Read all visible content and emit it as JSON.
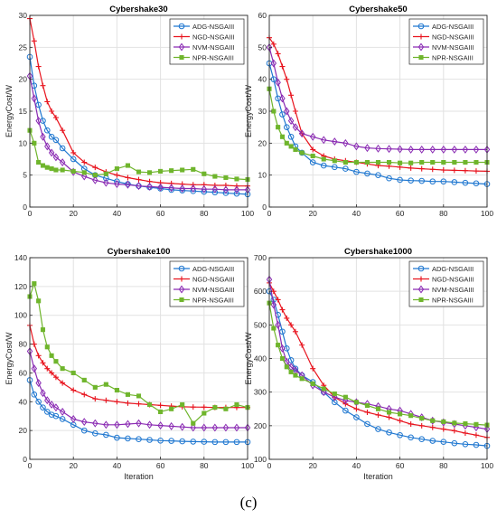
{
  "caption": "(c)",
  "colors": {
    "ADG-NSGAIII": "#1f77d0",
    "NGD-NSGAIII": "#e8141e",
    "NVM-NSGAIII": "#8a2bb3",
    "NPR-NSGAIII": "#6fb52c"
  },
  "chart_data": [
    {
      "type": "line",
      "title": "Cybershake30",
      "xlabel": "",
      "ylabel": "EnergyCost/W",
      "xlim": [
        0,
        100
      ],
      "ylim": [
        0,
        30
      ],
      "xticks": [
        0,
        20,
        40,
        60,
        80,
        100
      ],
      "yticks": [
        0,
        5,
        10,
        15,
        20,
        25,
        30
      ],
      "grid": true,
      "legend_position": "top-right",
      "series": [
        {
          "name": "ADG-NSGAIII",
          "marker": "circle",
          "x": [
            0,
            2,
            4,
            6,
            8,
            10,
            12,
            15,
            20,
            25,
            30,
            35,
            40,
            45,
            50,
            55,
            60,
            65,
            70,
            75,
            80,
            85,
            90,
            95,
            100
          ],
          "values": [
            23.5,
            19,
            16,
            13.5,
            12,
            11,
            10.5,
            9.2,
            7.5,
            6,
            5,
            4.5,
            4,
            3.6,
            3.3,
            3.1,
            2.9,
            2.7,
            2.6,
            2.5,
            2.4,
            2.3,
            2.2,
            2.1,
            2.0
          ]
        },
        {
          "name": "NGD-NSGAIII",
          "marker": "plus",
          "x": [
            0,
            2,
            4,
            6,
            8,
            10,
            12,
            15,
            20,
            25,
            30,
            35,
            40,
            45,
            50,
            55,
            60,
            65,
            70,
            75,
            80,
            85,
            90,
            95,
            100
          ],
          "values": [
            29.5,
            26,
            22,
            19,
            16.5,
            15,
            14,
            12,
            8.5,
            7,
            6.2,
            5.5,
            5,
            4.6,
            4.3,
            4,
            3.8,
            3.7,
            3.6,
            3.5,
            3.5,
            3.4,
            3.4,
            3.3,
            3.3
          ]
        },
        {
          "name": "NVM-NSGAIII",
          "marker": "diamond",
          "x": [
            0,
            2,
            4,
            6,
            8,
            10,
            12,
            15,
            20,
            25,
            30,
            35,
            40,
            45,
            50,
            55,
            60,
            65,
            70,
            75,
            80,
            85,
            90,
            95,
            100
          ],
          "values": [
            20.5,
            17,
            13.5,
            11,
            9.5,
            8.5,
            7.8,
            7,
            5.5,
            4.8,
            4.2,
            3.8,
            3.6,
            3.5,
            3.3,
            3.2,
            3.1,
            3.0,
            2.9,
            2.9,
            2.8,
            2.8,
            2.7,
            2.7,
            2.7
          ]
        },
        {
          "name": "NPR-NSGAIII",
          "marker": "square",
          "x": [
            0,
            2,
            4,
            6,
            8,
            10,
            12,
            15,
            20,
            25,
            30,
            35,
            40,
            45,
            50,
            55,
            60,
            65,
            70,
            75,
            80,
            85,
            90,
            95,
            100
          ],
          "values": [
            12,
            10,
            7,
            6.5,
            6.2,
            6,
            5.8,
            5.8,
            5.6,
            5.4,
            5,
            5.2,
            6,
            6.5,
            5.5,
            5.4,
            5.6,
            5.7,
            5.8,
            5.9,
            5.2,
            4.8,
            4.6,
            4.4,
            4.3
          ]
        }
      ]
    },
    {
      "type": "line",
      "title": "Cybershake50",
      "xlabel": "",
      "ylabel": "EnergyCost/W",
      "xlim": [
        0,
        100
      ],
      "ylim": [
        0,
        60
      ],
      "xticks": [
        0,
        20,
        40,
        60,
        80,
        100
      ],
      "yticks": [
        0,
        10,
        20,
        30,
        40,
        50,
        60
      ],
      "grid": true,
      "legend_position": "top-right",
      "series": [
        {
          "name": "ADG-NSGAIII",
          "marker": "circle",
          "x": [
            0,
            2,
            4,
            6,
            8,
            10,
            12,
            15,
            20,
            25,
            30,
            35,
            40,
            45,
            50,
            55,
            60,
            65,
            70,
            75,
            80,
            85,
            90,
            95,
            100
          ],
          "values": [
            45,
            40,
            34,
            29,
            25,
            22,
            19,
            17,
            14,
            13,
            12.5,
            12,
            11,
            10.5,
            10,
            9,
            8.5,
            8.3,
            8.2,
            8,
            8,
            7.8,
            7.6,
            7.4,
            7.2
          ]
        },
        {
          "name": "NGD-NSGAIII",
          "marker": "plus",
          "x": [
            0,
            2,
            4,
            6,
            8,
            10,
            12,
            15,
            20,
            25,
            30,
            35,
            40,
            45,
            50,
            55,
            60,
            65,
            70,
            75,
            80,
            85,
            90,
            95,
            100
          ],
          "values": [
            53,
            51,
            48,
            44,
            40,
            35,
            30,
            23,
            18,
            16,
            15,
            14.5,
            14,
            13.5,
            13,
            12.8,
            12.5,
            12.2,
            12,
            11.8,
            11.6,
            11.5,
            11.4,
            11.3,
            11.2
          ]
        },
        {
          "name": "NVM-NSGAIII",
          "marker": "diamond",
          "x": [
            0,
            2,
            4,
            6,
            8,
            10,
            12,
            15,
            20,
            25,
            30,
            35,
            40,
            45,
            50,
            55,
            60,
            65,
            70,
            75,
            80,
            85,
            90,
            95,
            100
          ],
          "values": [
            50,
            45,
            39,
            34,
            30,
            27,
            25,
            23,
            22,
            21,
            20.5,
            20,
            19,
            18.5,
            18.3,
            18.2,
            18.1,
            18,
            18,
            18,
            18,
            18,
            18,
            18,
            18
          ]
        },
        {
          "name": "NPR-NSGAIII",
          "marker": "square",
          "x": [
            0,
            2,
            4,
            6,
            8,
            10,
            12,
            15,
            20,
            25,
            30,
            35,
            40,
            45,
            50,
            55,
            60,
            65,
            70,
            75,
            80,
            85,
            90,
            95,
            100
          ],
          "values": [
            37,
            30,
            25,
            22,
            20,
            19,
            18,
            17,
            16,
            15,
            14.5,
            14,
            14,
            14,
            14,
            14,
            13.8,
            13.8,
            14,
            14,
            14,
            14,
            14,
            14,
            14
          ]
        }
      ]
    },
    {
      "type": "line",
      "title": "Cybershake100",
      "xlabel": "Iteration",
      "ylabel": "EnergyCost/W",
      "xlim": [
        0,
        100
      ],
      "ylim": [
        0,
        140
      ],
      "xticks": [
        0,
        20,
        40,
        60,
        80,
        100
      ],
      "yticks": [
        0,
        20,
        40,
        60,
        80,
        100,
        120,
        140
      ],
      "grid": true,
      "legend_position": "top-right",
      "series": [
        {
          "name": "ADG-NSGAIII",
          "marker": "circle",
          "x": [
            0,
            2,
            4,
            6,
            8,
            10,
            12,
            15,
            20,
            25,
            30,
            35,
            40,
            45,
            50,
            55,
            60,
            65,
            70,
            75,
            80,
            85,
            90,
            95,
            100
          ],
          "values": [
            55,
            45,
            40,
            36,
            33,
            31,
            30,
            28,
            24,
            20,
            18,
            17,
            15,
            14.5,
            14,
            13.5,
            13,
            12.8,
            12.5,
            12.3,
            12.2,
            12,
            12,
            12,
            12
          ]
        },
        {
          "name": "NGD-NSGAIII",
          "marker": "plus",
          "x": [
            0,
            2,
            4,
            6,
            8,
            10,
            12,
            15,
            20,
            25,
            30,
            35,
            40,
            45,
            50,
            55,
            60,
            65,
            70,
            75,
            80,
            85,
            90,
            95,
            100
          ],
          "values": [
            93,
            80,
            72,
            67,
            63,
            60,
            57,
            53,
            48,
            45,
            42,
            41,
            40,
            39,
            38.5,
            38,
            37.5,
            37,
            36.5,
            36.3,
            36.2,
            36,
            36,
            36,
            36
          ]
        },
        {
          "name": "NVM-NSGAIII",
          "marker": "diamond",
          "x": [
            0,
            2,
            4,
            6,
            8,
            10,
            12,
            15,
            20,
            25,
            30,
            35,
            40,
            45,
            50,
            55,
            60,
            65,
            70,
            75,
            80,
            85,
            90,
            95,
            100
          ],
          "values": [
            75,
            63,
            53,
            46,
            41,
            38,
            36,
            33,
            28,
            26,
            25,
            24,
            24,
            24.5,
            25,
            24,
            23.5,
            23,
            22.5,
            22,
            22,
            22,
            22,
            22,
            22
          ]
        },
        {
          "name": "NPR-NSGAIII",
          "marker": "square",
          "x": [
            0,
            2,
            4,
            6,
            8,
            10,
            12,
            15,
            20,
            25,
            30,
            35,
            40,
            45,
            50,
            55,
            60,
            65,
            70,
            75,
            80,
            85,
            90,
            95,
            100
          ],
          "values": [
            113,
            122,
            110,
            90,
            78,
            72,
            68,
            63,
            60,
            55,
            50,
            52,
            48,
            45,
            44,
            38,
            33,
            35,
            38,
            25,
            32,
            36,
            35,
            38,
            36
          ]
        }
      ]
    },
    {
      "type": "line",
      "title": "Cybershake1000",
      "xlabel": "Iteration",
      "ylabel": "EnergyCost/W",
      "xlim": [
        0,
        100
      ],
      "ylim": [
        100,
        700
      ],
      "xticks": [
        0,
        20,
        40,
        60,
        80,
        100
      ],
      "yticks": [
        100,
        200,
        300,
        400,
        500,
        600,
        700
      ],
      "grid": true,
      "legend_position": "top-right",
      "series": [
        {
          "name": "ADG-NSGAIII",
          "marker": "circle",
          "x": [
            0,
            2,
            4,
            6,
            8,
            10,
            12,
            15,
            20,
            25,
            30,
            35,
            40,
            45,
            50,
            55,
            60,
            65,
            70,
            75,
            80,
            85,
            90,
            95,
            100
          ],
          "values": [
            600,
            575,
            530,
            480,
            430,
            395,
            370,
            350,
            330,
            300,
            270,
            245,
            225,
            205,
            190,
            180,
            172,
            165,
            160,
            155,
            152,
            148,
            145,
            143,
            140
          ]
        },
        {
          "name": "NGD-NSGAIII",
          "marker": "plus",
          "x": [
            0,
            2,
            4,
            6,
            8,
            10,
            12,
            15,
            20,
            25,
            30,
            35,
            40,
            45,
            50,
            55,
            60,
            65,
            70,
            75,
            80,
            85,
            90,
            95,
            100
          ],
          "values": [
            625,
            600,
            575,
            545,
            520,
            500,
            480,
            440,
            370,
            320,
            285,
            265,
            250,
            240,
            232,
            225,
            215,
            205,
            200,
            195,
            190,
            185,
            178,
            172,
            165
          ]
        },
        {
          "name": "NVM-NSGAIII",
          "marker": "diamond",
          "x": [
            0,
            2,
            4,
            6,
            8,
            10,
            12,
            15,
            20,
            25,
            30,
            35,
            40,
            45,
            50,
            55,
            60,
            65,
            70,
            75,
            80,
            85,
            90,
            95,
            100
          ],
          "values": [
            635,
            560,
            500,
            430,
            390,
            375,
            365,
            350,
            320,
            300,
            285,
            275,
            270,
            265,
            258,
            250,
            245,
            235,
            225,
            215,
            210,
            205,
            200,
            195,
            190
          ]
        },
        {
          "name": "NPR-NSGAIII",
          "marker": "square",
          "x": [
            0,
            2,
            4,
            6,
            8,
            10,
            12,
            15,
            20,
            25,
            30,
            35,
            40,
            45,
            50,
            55,
            60,
            65,
            70,
            75,
            80,
            85,
            90,
            95,
            100
          ],
          "values": [
            565,
            490,
            440,
            400,
            375,
            360,
            350,
            340,
            325,
            310,
            295,
            285,
            270,
            260,
            250,
            240,
            235,
            230,
            222,
            215,
            212,
            208,
            206,
            204,
            202
          ]
        }
      ]
    }
  ]
}
